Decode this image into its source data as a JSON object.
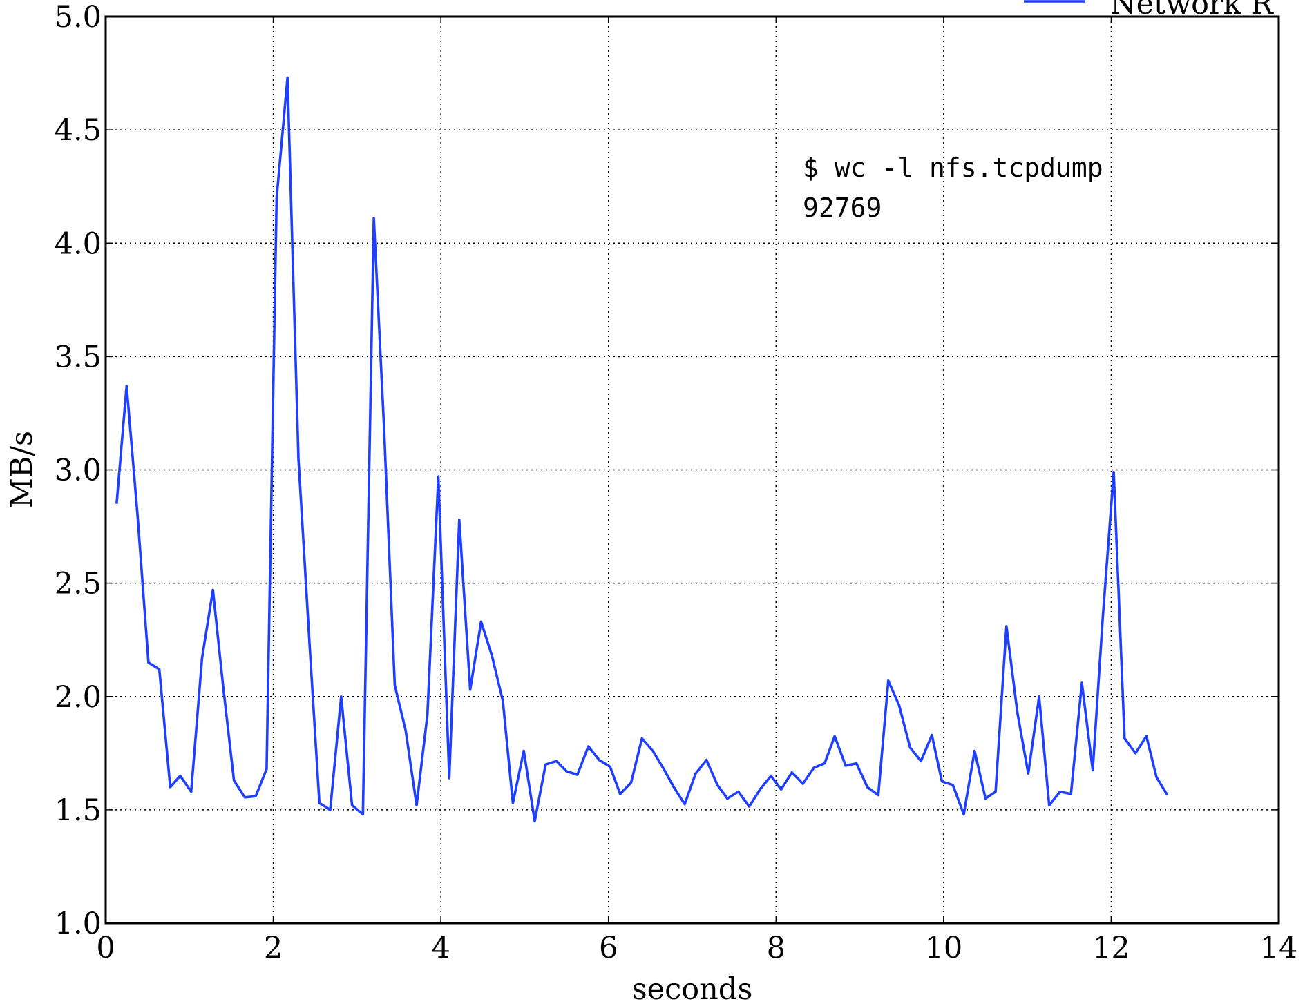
{
  "chart_data": {
    "type": "line",
    "xlabel": "seconds",
    "ylabel": "MB/s",
    "annotations": [
      "$ wc -l nfs.tcpdump",
      "92769"
    ],
    "x": [
      0.13,
      0.25,
      0.38,
      0.51,
      0.64,
      0.77,
      0.89,
      1.02,
      1.15,
      1.28,
      1.4,
      1.53,
      1.66,
      1.79,
      1.92,
      2.04,
      2.17,
      2.3,
      2.43,
      2.55,
      2.68,
      2.81,
      2.94,
      3.07,
      3.2,
      3.32,
      3.45,
      3.58,
      3.71,
      3.84,
      3.97,
      4.1,
      4.22,
      4.35,
      4.48,
      4.61,
      4.74,
      4.86,
      4.99,
      5.12,
      5.25,
      5.38,
      5.5,
      5.63,
      5.76,
      5.89,
      6.02,
      6.14,
      6.27,
      6.4,
      6.53,
      6.66,
      6.78,
      6.91,
      7.04,
      7.17,
      7.3,
      7.42,
      7.55,
      7.68,
      7.81,
      7.94,
      8.06,
      8.19,
      8.32,
      8.45,
      8.58,
      8.7,
      8.83,
      8.96,
      9.09,
      9.22,
      9.34,
      9.47,
      9.6,
      9.73,
      9.86,
      9.98,
      10.11,
      10.24,
      10.37,
      10.5,
      10.62,
      10.75,
      10.88,
      11.01,
      11.14,
      11.26,
      11.39,
      11.52,
      11.65,
      11.78,
      11.9,
      12.03,
      12.16,
      12.29,
      12.42,
      12.54,
      12.67
    ],
    "series": [
      {
        "name": "Network R",
        "color": "#1f3fff",
        "values": [
          2.85,
          3.37,
          2.8,
          2.15,
          2.12,
          1.6,
          1.65,
          1.58,
          2.17,
          2.47,
          2.05,
          1.63,
          1.555,
          1.56,
          1.68,
          4.2,
          4.73,
          3.05,
          2.25,
          1.53,
          1.5,
          2.0,
          1.52,
          1.48,
          4.11,
          3.2,
          2.05,
          1.85,
          1.52,
          1.92,
          2.97,
          1.64,
          2.78,
          2.03,
          2.33,
          2.18,
          1.98,
          1.53,
          1.76,
          1.45,
          1.7,
          1.715,
          1.67,
          1.655,
          1.78,
          1.72,
          1.69,
          1.57,
          1.62,
          1.815,
          1.76,
          1.68,
          1.6,
          1.525,
          1.66,
          1.72,
          1.61,
          1.55,
          1.58,
          1.515,
          1.59,
          1.65,
          1.59,
          1.665,
          1.615,
          1.685,
          1.705,
          1.825,
          1.695,
          1.705,
          1.6,
          1.565,
          2.07,
          1.96,
          1.775,
          1.715,
          1.83,
          1.625,
          1.61,
          1.48,
          1.76,
          1.55,
          1.58,
          2.31,
          1.93,
          1.66,
          2.0,
          1.52,
          1.58,
          1.57,
          2.06,
          1.675,
          2.35,
          2.99,
          1.815,
          1.75,
          1.825,
          1.645,
          1.565
        ]
      }
    ],
    "xlim": [
      0,
      14
    ],
    "xticks": [
      0,
      2,
      4,
      6,
      8,
      10,
      12,
      14
    ],
    "ylim": [
      1,
      5
    ],
    "yticks": [
      {
        "value": 1,
        "label": "1.0"
      },
      1.5,
      {
        "value": 2,
        "label": "2.0"
      },
      2.5,
      {
        "value": 3,
        "label": "3.0"
      },
      3.5,
      {
        "value": 4,
        "label": "4.0"
      },
      4.5,
      {
        "value": 5,
        "label": "5.0"
      }
    ],
    "grid": true,
    "legend": "upper right"
  }
}
